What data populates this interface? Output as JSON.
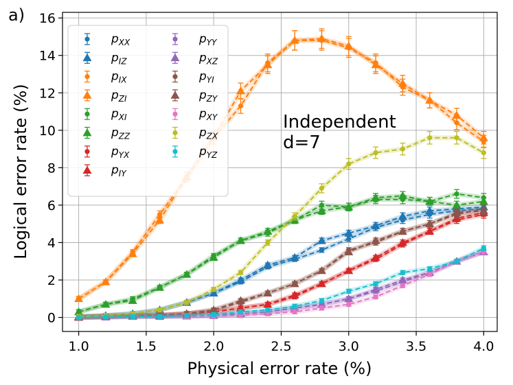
{
  "panel_label": "a)",
  "annotation": [
    "Independent",
    "d=7"
  ],
  "chart_data": {
    "type": "line",
    "title": "",
    "xlabel": "Physical error rate (%)",
    "ylabel": "Logical error rate (%)",
    "xlim": [
      0.88,
      4.1
    ],
    "ylim": [
      -0.75,
      16.3
    ],
    "xticks": [
      1.0,
      1.5,
      2.0,
      2.5,
      3.0,
      3.5,
      4.0
    ],
    "xtick_labels": [
      "1.0",
      "1.5",
      "2.0",
      "2.5",
      "3.0",
      "3.5",
      "4.0"
    ],
    "yticks": [
      0,
      2,
      4,
      6,
      8,
      10,
      12,
      14,
      16
    ],
    "ytick_labels": [
      "0",
      "2",
      "4",
      "6",
      "8",
      "10",
      "12",
      "14",
      "16"
    ],
    "grid": true,
    "legend_position": "top-left",
    "x": [
      1.0,
      1.2,
      1.4,
      1.6,
      1.8,
      2.0,
      2.2,
      2.4,
      2.6,
      2.8,
      3.0,
      3.2,
      3.4,
      3.6,
      3.8,
      4.0
    ],
    "series": [
      {
        "name": "XX",
        "color": "#1f77b4",
        "marker": "circle",
        "values": [
          0.05,
          0.1,
          0.2,
          0.4,
          0.8,
          1.3,
          1.9,
          2.7,
          3.1,
          3.6,
          4.2,
          4.8,
          5.2,
          5.5,
          5.7,
          5.8
        ]
      },
      {
        "name": "IZ",
        "color": "#1f77b4",
        "marker": "triangle",
        "values": [
          0.05,
          0.1,
          0.2,
          0.4,
          0.8,
          1.3,
          2.0,
          2.8,
          3.2,
          4.1,
          4.5,
          4.9,
          5.4,
          5.7,
          5.8,
          5.9
        ]
      },
      {
        "name": "IX",
        "color": "#ff7f0e",
        "marker": "circle",
        "values": [
          1.0,
          1.9,
          3.5,
          5.5,
          7.5,
          9.6,
          11.3,
          13.6,
          14.8,
          14.8,
          14.4,
          13.6,
          12.3,
          11.6,
          10.4,
          9.4
        ]
      },
      {
        "name": "ZI",
        "color": "#ff7f0e",
        "marker": "triangle",
        "values": [
          1.0,
          1.9,
          3.4,
          5.2,
          7.5,
          9.6,
          12.1,
          13.5,
          14.8,
          14.9,
          14.5,
          13.5,
          12.5,
          11.6,
          10.8,
          9.6
        ]
      },
      {
        "name": "XI",
        "color": "#2ca02c",
        "marker": "circle",
        "values": [
          0.3,
          0.7,
          1.0,
          1.6,
          2.3,
          3.3,
          4.1,
          4.5,
          5.2,
          6.0,
          5.9,
          6.3,
          6.3,
          6.2,
          6.6,
          6.4
        ]
      },
      {
        "name": "ZZ",
        "color": "#2ca02c",
        "marker": "triangle",
        "values": [
          0.3,
          0.7,
          0.9,
          1.6,
          2.3,
          3.2,
          4.1,
          4.6,
          5.2,
          5.7,
          5.9,
          6.4,
          6.5,
          6.2,
          6.0,
          6.2
        ]
      },
      {
        "name": "YX",
        "color": "#d62728",
        "marker": "circle",
        "values": [
          0.0,
          0.05,
          0.1,
          0.1,
          0.2,
          0.3,
          0.5,
          0.7,
          1.1,
          1.8,
          2.5,
          3.1,
          3.9,
          4.6,
          5.2,
          5.5
        ]
      },
      {
        "name": "IY",
        "color": "#d62728",
        "marker": "triangle",
        "values": [
          0.0,
          0.05,
          0.1,
          0.1,
          0.2,
          0.3,
          0.5,
          0.7,
          1.2,
          1.8,
          2.5,
          3.2,
          4.0,
          4.6,
          5.3,
          5.6
        ]
      },
      {
        "name": "YY",
        "color": "#9467bd",
        "marker": "circle",
        "values": [
          0.0,
          0.02,
          0.05,
          0.05,
          0.07,
          0.1,
          0.2,
          0.3,
          0.5,
          0.7,
          1.0,
          1.4,
          1.9,
          2.4,
          3.0,
          3.5
        ]
      },
      {
        "name": "XZ",
        "color": "#9467bd",
        "marker": "triangle",
        "values": [
          0.0,
          0.02,
          0.05,
          0.05,
          0.07,
          0.1,
          0.2,
          0.3,
          0.5,
          0.7,
          1.0,
          1.5,
          2.0,
          2.4,
          3.0,
          3.5
        ]
      },
      {
        "name": "YI",
        "color": "#8c564b",
        "marker": "circle",
        "values": [
          0.02,
          0.05,
          0.1,
          0.1,
          0.2,
          0.4,
          0.8,
          1.3,
          1.8,
          2.5,
          3.6,
          4.0,
          4.6,
          5.0,
          5.5,
          5.8
        ]
      },
      {
        "name": "ZY",
        "color": "#8c564b",
        "marker": "triangle",
        "values": [
          0.02,
          0.05,
          0.1,
          0.15,
          0.2,
          0.4,
          0.9,
          1.3,
          1.8,
          2.5,
          3.5,
          4.1,
          4.6,
          5.0,
          5.6,
          5.7
        ]
      },
      {
        "name": "XY",
        "color": "#e377c2",
        "marker": "circle",
        "values": [
          0.0,
          0.02,
          0.03,
          0.05,
          0.05,
          0.08,
          0.1,
          0.2,
          0.3,
          0.5,
          0.7,
          1.1,
          1.7,
          2.3,
          3.0,
          3.5
        ]
      },
      {
        "name": "ZX",
        "color": "#bcbd22",
        "marker": "circle",
        "values": [
          0.05,
          0.1,
          0.2,
          0.4,
          0.8,
          1.5,
          2.4,
          4.0,
          5.4,
          6.9,
          8.2,
          8.8,
          9.0,
          9.6,
          9.6,
          8.8
        ]
      },
      {
        "name": "YZ",
        "color": "#17becf",
        "marker": "circle",
        "values": [
          0.0,
          0.02,
          0.05,
          0.05,
          0.1,
          0.15,
          0.3,
          0.4,
          0.6,
          0.9,
          1.4,
          1.8,
          2.4,
          2.6,
          3.0,
          3.7
        ]
      }
    ]
  }
}
